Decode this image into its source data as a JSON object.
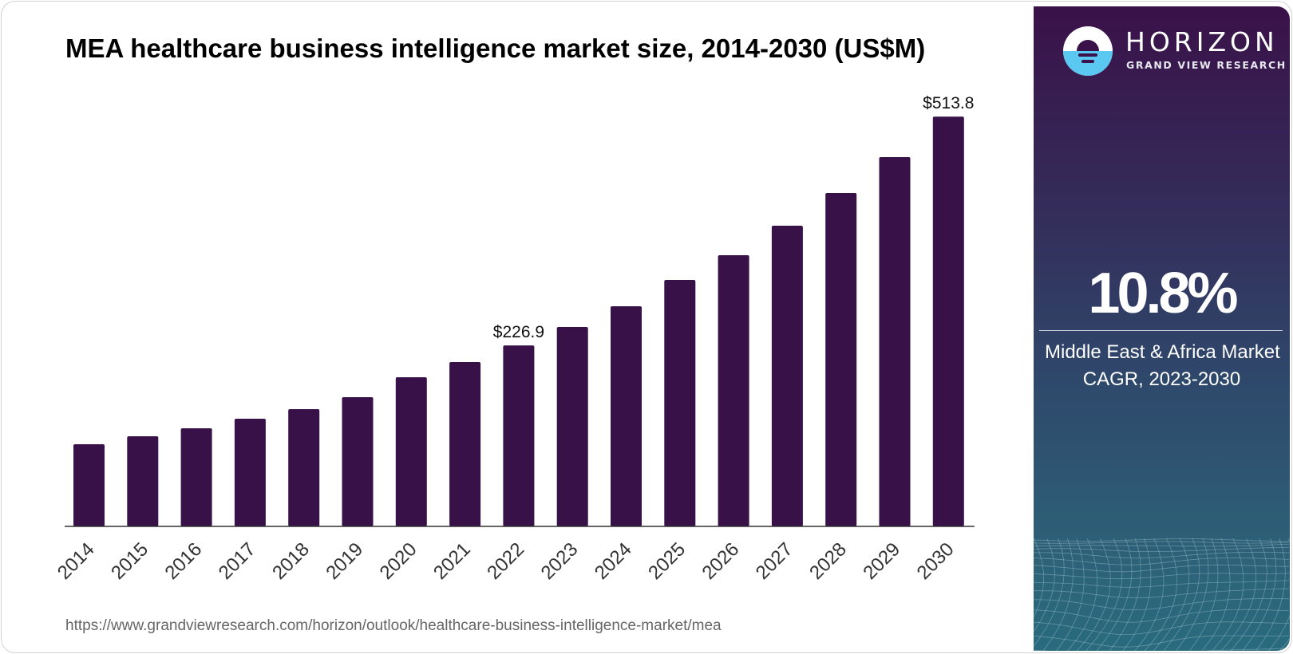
{
  "header": {
    "title": "MEA healthcare business intelligence market size, 2014-2030 (US$M)"
  },
  "footer": {
    "source_url": "https://www.grandviewresearch.com/horizon/outlook/healthcare-business-intelligence-market/mea"
  },
  "sidebar": {
    "brand_name": "HORIZON",
    "brand_sub": "GRAND VIEW RESEARCH",
    "cagr_value": "10.8%",
    "cagr_label_line1": "Middle East & Africa Market",
    "cagr_label_line2": "CAGR, 2023-2030",
    "logo_icon": "horizon-sun-logo-icon"
  },
  "colors": {
    "bar": "#371148",
    "axis": "#333333",
    "logo_water": "#5bc8f2",
    "panel_top": "#3a1149",
    "panel_bottom": "#2a6b7e"
  },
  "chart_data": {
    "type": "bar",
    "title": "MEA healthcare business intelligence market size, 2014-2030 (US$M)",
    "xlabel": "",
    "ylabel": "US$M",
    "categories": [
      "2014",
      "2015",
      "2016",
      "2017",
      "2018",
      "2019",
      "2020",
      "2021",
      "2022",
      "2023",
      "2024",
      "2025",
      "2026",
      "2027",
      "2028",
      "2029",
      "2030"
    ],
    "values": [
      103,
      113,
      123,
      135,
      147,
      162,
      187,
      206,
      226.9,
      250,
      276,
      309,
      340,
      377,
      418,
      463,
      513.8
    ],
    "data_labels": {
      "2022": "$226.9",
      "2030": "$513.8"
    },
    "ylim": [
      0,
      513.8
    ],
    "grid": false,
    "legend": "none"
  }
}
